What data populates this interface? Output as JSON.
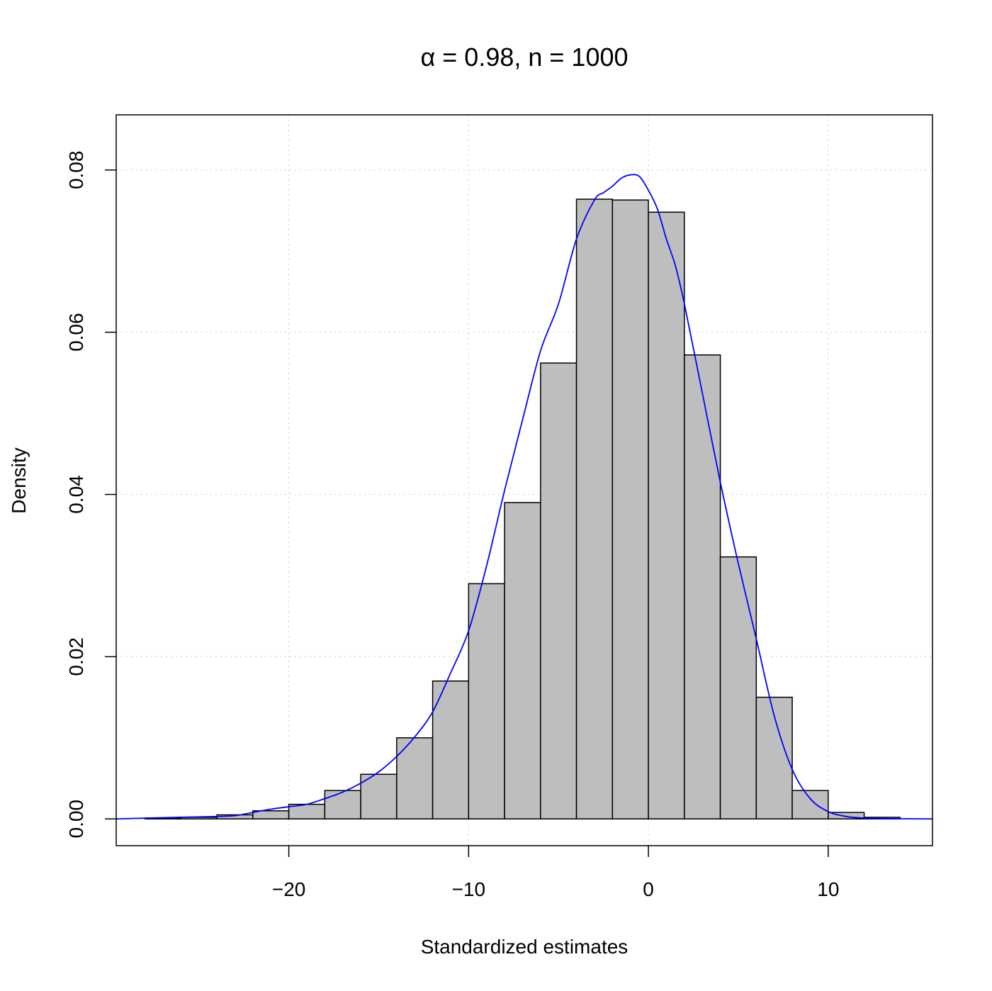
{
  "chart_data": {
    "type": "bar",
    "title": "α = 0.98, n = 1000",
    "xlabel": "Standardized estimates",
    "ylabel": "Density",
    "xlim": [
      -29.6,
      15.8
    ],
    "ylim": [
      -0.0033,
      0.0868
    ],
    "x_ticks": [
      -20,
      -10,
      0,
      10
    ],
    "x_tick_labels": [
      "−20",
      "−10",
      "0",
      "10"
    ],
    "y_ticks": [
      0.0,
      0.02,
      0.04,
      0.06,
      0.08
    ],
    "y_tick_labels": [
      "0.00",
      "0.02",
      "0.04",
      "0.06",
      "0.08"
    ],
    "grid": true,
    "bin_edges": [
      -28,
      -26,
      -24,
      -22,
      -20,
      -18,
      -16,
      -14,
      -12,
      -10,
      -8,
      -6,
      -4,
      -2,
      0,
      2,
      4,
      6,
      8,
      10,
      12,
      14
    ],
    "values": [
      0.0001,
      0.0002,
      0.0005,
      0.001,
      0.0018,
      0.0035,
      0.0055,
      0.01,
      0.017,
      0.029,
      0.039,
      0.0562,
      0.0764,
      0.0763,
      0.0748,
      0.0572,
      0.0323,
      0.015,
      0.0035,
      0.0008,
      0.0002
    ],
    "density_curve": {
      "x": [
        -29.6,
        -28,
        -26,
        -24,
        -23,
        -22,
        -21,
        -20,
        -19,
        -18,
        -17,
        -16,
        -15,
        -14,
        -13,
        -12,
        -11,
        -10,
        -9,
        -8,
        -7,
        -6,
        -5,
        -4,
        -3,
        -2.5,
        -2,
        -1.5,
        -1,
        -0.5,
        0,
        0.5,
        1,
        1.5,
        2,
        3,
        4,
        5,
        6,
        7,
        8,
        9,
        10,
        11,
        12,
        13,
        14,
        15.8
      ],
      "y": [
        0.0,
        0.0001,
        0.0002,
        0.0003,
        0.0004,
        0.0008,
        0.0012,
        0.0015,
        0.0018,
        0.0025,
        0.0033,
        0.0044,
        0.0058,
        0.0077,
        0.0101,
        0.0132,
        0.018,
        0.0232,
        0.0312,
        0.0405,
        0.0492,
        0.0577,
        0.0635,
        0.0715,
        0.0763,
        0.0772,
        0.078,
        0.079,
        0.0794,
        0.0792,
        0.0775,
        0.0752,
        0.0715,
        0.0682,
        0.0635,
        0.0525,
        0.0415,
        0.0315,
        0.0222,
        0.0127,
        0.0061,
        0.0025,
        0.0009,
        0.0003,
        0.0001,
        5e-05,
        2e-05,
        0.0
      ],
      "color": "#0000ff"
    },
    "bar_fill": "#bebebe",
    "bar_stroke": "#000000"
  }
}
